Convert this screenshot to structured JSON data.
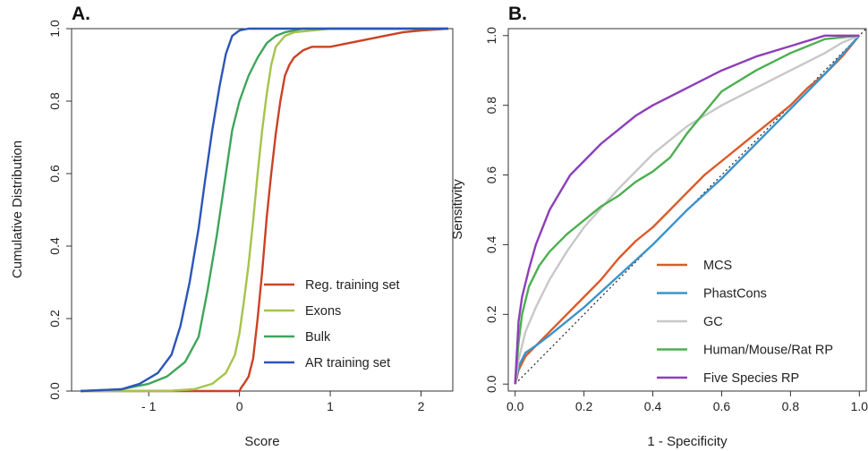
{
  "chart_data": [
    {
      "panel": "A.",
      "type": "line",
      "xlabel": "Score",
      "ylabel": "Cumulative Distribution",
      "xlim": [
        -1.85,
        2.35
      ],
      "ylim": [
        0,
        1.0
      ],
      "xticks": [
        -1,
        0,
        1,
        2
      ],
      "xtick_labels": [
        "- 1",
        "0",
        "1",
        "2"
      ],
      "yticks": [
        0.0,
        0.2,
        0.4,
        0.6,
        0.8,
        1.0
      ],
      "ytick_labels": [
        "0.0",
        "0.2",
        "0.4",
        "0.6",
        "0.8",
        "1.0"
      ],
      "legend_position": "bottom-right",
      "series": [
        {
          "name": "Reg. training set",
          "color": "#cc4125",
          "x": [
            -1.75,
            0,
            0.02,
            0.05,
            0.1,
            0.15,
            0.2,
            0.25,
            0.3,
            0.35,
            0.4,
            0.45,
            0.5,
            0.55,
            0.6,
            0.7,
            0.8,
            1.0,
            1.2,
            1.4,
            1.6,
            1.8,
            2.0,
            2.3
          ],
          "y": [
            0,
            0,
            0.01,
            0.02,
            0.04,
            0.09,
            0.2,
            0.33,
            0.48,
            0.6,
            0.71,
            0.8,
            0.87,
            0.9,
            0.92,
            0.94,
            0.95,
            0.95,
            0.96,
            0.97,
            0.98,
            0.99,
            0.995,
            1.0
          ]
        },
        {
          "name": "Exons",
          "color": "#a6c34c",
          "x": [
            -1.75,
            -0.8,
            -0.5,
            -0.3,
            -0.15,
            -0.05,
            0.0,
            0.05,
            0.1,
            0.15,
            0.2,
            0.25,
            0.3,
            0.35,
            0.4,
            0.5,
            0.6,
            0.8,
            1.0,
            2.3
          ],
          "y": [
            0,
            0,
            0.005,
            0.02,
            0.05,
            0.1,
            0.16,
            0.25,
            0.35,
            0.47,
            0.6,
            0.72,
            0.82,
            0.9,
            0.95,
            0.98,
            0.99,
            0.995,
            1.0,
            1.0
          ]
        },
        {
          "name": "Bulk",
          "color": "#3fa55a",
          "x": [
            -1.75,
            -1.3,
            -1.0,
            -0.8,
            -0.6,
            -0.45,
            -0.35,
            -0.25,
            -0.15,
            -0.08,
            0.0,
            0.1,
            0.2,
            0.3,
            0.4,
            0.5,
            0.7,
            2.3
          ],
          "y": [
            0,
            0.005,
            0.02,
            0.04,
            0.08,
            0.15,
            0.28,
            0.43,
            0.6,
            0.72,
            0.8,
            0.87,
            0.92,
            0.96,
            0.98,
            0.99,
            1.0,
            1.0
          ]
        },
        {
          "name": "AR training set",
          "color": "#2c55b8",
          "x": [
            -1.75,
            -1.3,
            -1.1,
            -0.9,
            -0.75,
            -0.65,
            -0.55,
            -0.45,
            -0.38,
            -0.3,
            -0.22,
            -0.15,
            -0.08,
            0.0,
            0.1,
            2.3
          ],
          "y": [
            0,
            0.005,
            0.02,
            0.05,
            0.1,
            0.18,
            0.3,
            0.45,
            0.58,
            0.72,
            0.84,
            0.93,
            0.98,
            0.995,
            1.0,
            1.0
          ]
        }
      ]
    },
    {
      "panel": "B.",
      "type": "line",
      "xlabel": "1 -  Specificity",
      "ylabel": "Sensitivity",
      "xlim": [
        -0.02,
        1.02
      ],
      "ylim": [
        -0.02,
        1.02
      ],
      "xticks": [
        0.0,
        0.2,
        0.4,
        0.6,
        0.8,
        1.0
      ],
      "xtick_labels": [
        "0.0",
        "0.2",
        "0.4",
        "0.6",
        "0.8",
        "1.0"
      ],
      "yticks": [
        0.0,
        0.2,
        0.4,
        0.6,
        0.8,
        1.0
      ],
      "ytick_labels": [
        "0.0",
        "0.2",
        "0.4",
        "0.6",
        "0.8",
        "1.0"
      ],
      "diagonal_reference": true,
      "legend_position": "bottom-right",
      "series": [
        {
          "name": "MCS",
          "color": "#dc5a2a",
          "x": [
            0,
            0.01,
            0.03,
            0.06,
            0.1,
            0.15,
            0.2,
            0.25,
            0.3,
            0.35,
            0.4,
            0.45,
            0.5,
            0.55,
            0.6,
            0.65,
            0.7,
            0.75,
            0.8,
            0.85,
            0.9,
            0.95,
            1.0
          ],
          "y": [
            0,
            0.04,
            0.08,
            0.11,
            0.15,
            0.2,
            0.25,
            0.3,
            0.36,
            0.41,
            0.45,
            0.5,
            0.55,
            0.6,
            0.64,
            0.68,
            0.72,
            0.76,
            0.8,
            0.85,
            0.89,
            0.94,
            1.0
          ]
        },
        {
          "name": "PhastCons",
          "color": "#3b93c9",
          "x": [
            0,
            0.01,
            0.03,
            0.06,
            0.1,
            0.2,
            0.3,
            0.4,
            0.5,
            0.6,
            0.7,
            0.8,
            0.9,
            1.0
          ],
          "y": [
            0,
            0.05,
            0.09,
            0.11,
            0.14,
            0.22,
            0.31,
            0.4,
            0.5,
            0.59,
            0.69,
            0.79,
            0.89,
            1.0
          ]
        },
        {
          "name": "GC",
          "color": "#c8c8c8",
          "x": [
            0,
            0.01,
            0.03,
            0.06,
            0.1,
            0.15,
            0.2,
            0.3,
            0.4,
            0.5,
            0.6,
            0.7,
            0.8,
            0.9,
            0.95,
            1.0
          ],
          "y": [
            0,
            0.07,
            0.15,
            0.22,
            0.3,
            0.38,
            0.45,
            0.56,
            0.66,
            0.74,
            0.8,
            0.85,
            0.9,
            0.95,
            0.98,
            1.0
          ]
        },
        {
          "name": "Human/Mouse/Rat RP",
          "color": "#4caf50",
          "x": [
            0,
            0.01,
            0.02,
            0.04,
            0.07,
            0.1,
            0.15,
            0.2,
            0.25,
            0.3,
            0.35,
            0.4,
            0.45,
            0.5,
            0.55,
            0.6,
            0.7,
            0.8,
            0.9,
            1.0
          ],
          "y": [
            0,
            0.12,
            0.2,
            0.28,
            0.34,
            0.38,
            0.43,
            0.47,
            0.51,
            0.54,
            0.58,
            0.61,
            0.65,
            0.72,
            0.78,
            0.84,
            0.9,
            0.95,
            0.99,
            1.0
          ]
        },
        {
          "name": "Five Species RP",
          "color": "#8e3fb8",
          "x": [
            0,
            0.01,
            0.02,
            0.04,
            0.06,
            0.08,
            0.1,
            0.13,
            0.16,
            0.2,
            0.25,
            0.3,
            0.35,
            0.4,
            0.5,
            0.6,
            0.7,
            0.8,
            0.9,
            1.0
          ],
          "y": [
            0,
            0.18,
            0.25,
            0.33,
            0.4,
            0.45,
            0.5,
            0.55,
            0.6,
            0.64,
            0.69,
            0.73,
            0.77,
            0.8,
            0.85,
            0.9,
            0.94,
            0.97,
            1.0,
            1.0
          ]
        }
      ]
    }
  ]
}
